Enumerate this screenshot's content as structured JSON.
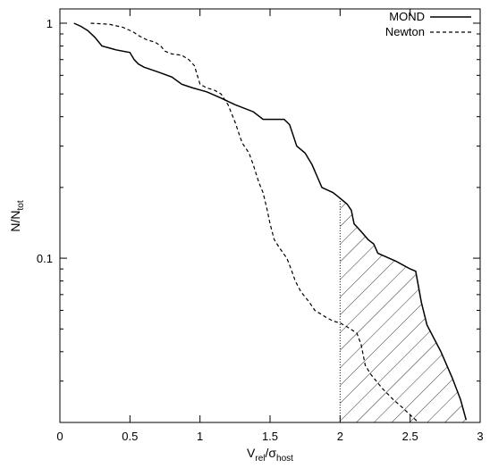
{
  "chart_data": {
    "type": "line",
    "x_scale": "linear",
    "y_scale": "log",
    "xlim": [
      0,
      3
    ],
    "ylim": [
      0.02,
      1.15
    ],
    "xlabel": {
      "main": "V",
      "sub1": "rel",
      "slash": "/σ",
      "sub2": "host"
    },
    "ylabel": {
      "main": "N/N",
      "sub": "tot"
    },
    "x_ticks": [
      "0",
      "0.5",
      "1",
      "1.5",
      "2",
      "2.5",
      "3"
    ],
    "y_ticks": [
      "0.1",
      "1"
    ],
    "grid": false,
    "legend_position": "top-right",
    "series": [
      {
        "name": "MOND",
        "style": "solid",
        "points": [
          [
            0.1,
            1.0
          ],
          [
            0.15,
            0.97
          ],
          [
            0.2,
            0.93
          ],
          [
            0.25,
            0.87
          ],
          [
            0.3,
            0.8
          ],
          [
            0.4,
            0.77
          ],
          [
            0.5,
            0.75
          ],
          [
            0.53,
            0.7
          ],
          [
            0.56,
            0.67
          ],
          [
            0.6,
            0.65
          ],
          [
            0.7,
            0.62
          ],
          [
            0.8,
            0.59
          ],
          [
            0.87,
            0.55
          ],
          [
            0.95,
            0.53
          ],
          [
            1.0,
            0.52
          ],
          [
            1.05,
            0.51
          ],
          [
            1.15,
            0.48
          ],
          [
            1.25,
            0.45
          ],
          [
            1.38,
            0.42
          ],
          [
            1.45,
            0.39
          ],
          [
            1.6,
            0.39
          ],
          [
            1.64,
            0.37
          ],
          [
            1.66,
            0.34
          ],
          [
            1.69,
            0.3
          ],
          [
            1.75,
            0.28
          ],
          [
            1.8,
            0.25
          ],
          [
            1.84,
            0.22
          ],
          [
            1.87,
            0.2
          ],
          [
            1.95,
            0.19
          ],
          [
            2.0,
            0.18
          ],
          [
            2.05,
            0.17
          ],
          [
            2.08,
            0.16
          ],
          [
            2.1,
            0.14
          ],
          [
            2.15,
            0.13
          ],
          [
            2.2,
            0.12
          ],
          [
            2.24,
            0.115
          ],
          [
            2.27,
            0.105
          ],
          [
            2.4,
            0.097
          ],
          [
            2.5,
            0.09
          ],
          [
            2.54,
            0.088
          ],
          [
            2.58,
            0.065
          ],
          [
            2.62,
            0.052
          ],
          [
            2.72,
            0.04
          ],
          [
            2.8,
            0.031
          ],
          [
            2.86,
            0.025
          ],
          [
            2.9,
            0.0205
          ]
        ]
      },
      {
        "name": "Newton",
        "style": "dashed",
        "points": [
          [
            0.22,
            1.0
          ],
          [
            0.35,
            0.99
          ],
          [
            0.45,
            0.96
          ],
          [
            0.52,
            0.92
          ],
          [
            0.57,
            0.88
          ],
          [
            0.62,
            0.85
          ],
          [
            0.68,
            0.83
          ],
          [
            0.72,
            0.8
          ],
          [
            0.75,
            0.76
          ],
          [
            0.8,
            0.74
          ],
          [
            0.87,
            0.73
          ],
          [
            0.92,
            0.7
          ],
          [
            0.96,
            0.66
          ],
          [
            1.0,
            0.55
          ],
          [
            1.05,
            0.53
          ],
          [
            1.1,
            0.52
          ],
          [
            1.15,
            0.5
          ],
          [
            1.2,
            0.45
          ],
          [
            1.25,
            0.38
          ],
          [
            1.3,
            0.31
          ],
          [
            1.35,
            0.28
          ],
          [
            1.38,
            0.25
          ],
          [
            1.42,
            0.21
          ],
          [
            1.45,
            0.19
          ],
          [
            1.48,
            0.16
          ],
          [
            1.5,
            0.14
          ],
          [
            1.53,
            0.12
          ],
          [
            1.57,
            0.11
          ],
          [
            1.62,
            0.1
          ],
          [
            1.65,
            0.09
          ],
          [
            1.68,
            0.08
          ],
          [
            1.72,
            0.072
          ],
          [
            1.78,
            0.065
          ],
          [
            1.82,
            0.06
          ],
          [
            1.9,
            0.056
          ],
          [
            1.95,
            0.054
          ],
          [
            2.0,
            0.053
          ],
          [
            2.05,
            0.051
          ],
          [
            2.12,
            0.048
          ],
          [
            2.15,
            0.043
          ],
          [
            2.18,
            0.035
          ],
          [
            2.22,
            0.032
          ],
          [
            2.3,
            0.028
          ],
          [
            2.38,
            0.025
          ],
          [
            2.45,
            0.023
          ],
          [
            2.52,
            0.021
          ],
          [
            2.56,
            0.02
          ]
        ]
      }
    ],
    "marker_line": {
      "x": 2.0,
      "style": "dotted"
    },
    "shaded_region": {
      "x_from": 2.0,
      "pattern": "hatch",
      "between": "MOND-above-floor"
    }
  }
}
